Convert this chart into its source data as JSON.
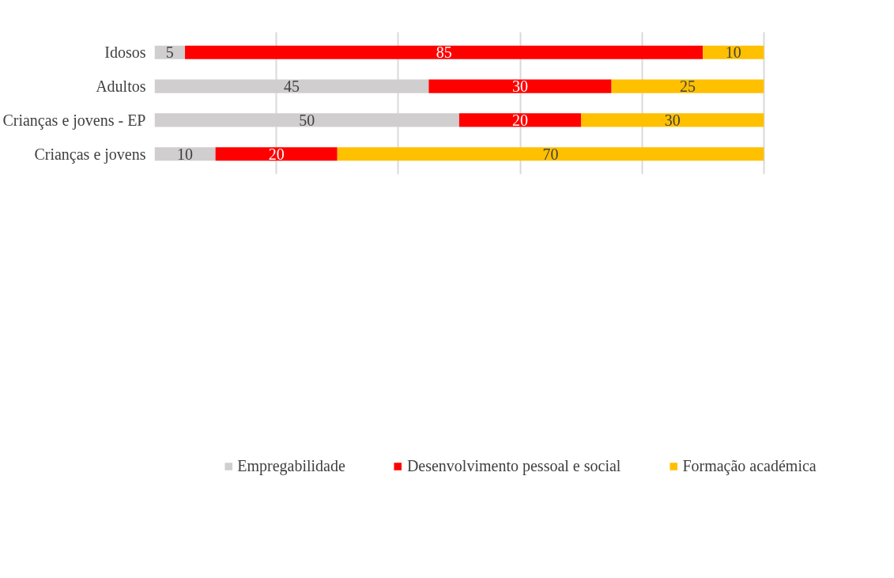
{
  "chart_data": {
    "type": "bar",
    "orientation": "horizontal",
    "stacked": true,
    "categories": [
      "Idosos",
      "Adultos",
      "Crianças e jovens - EP",
      "Crianças e jovens"
    ],
    "series": [
      {
        "name": "Empregabilidade",
        "color": "#d0cece",
        "values": [
          5,
          45,
          50,
          10
        ]
      },
      {
        "name": "Desenvolvimento pessoal e social",
        "color": "#ff0000",
        "values": [
          85,
          30,
          20,
          20
        ]
      },
      {
        "name": "Formação académica",
        "color": "#ffc000",
        "values": [
          10,
          25,
          30,
          70
        ]
      }
    ],
    "tick_labels": "y",
    "grid": "x",
    "legend": "bottom",
    "data_labels": true
  }
}
